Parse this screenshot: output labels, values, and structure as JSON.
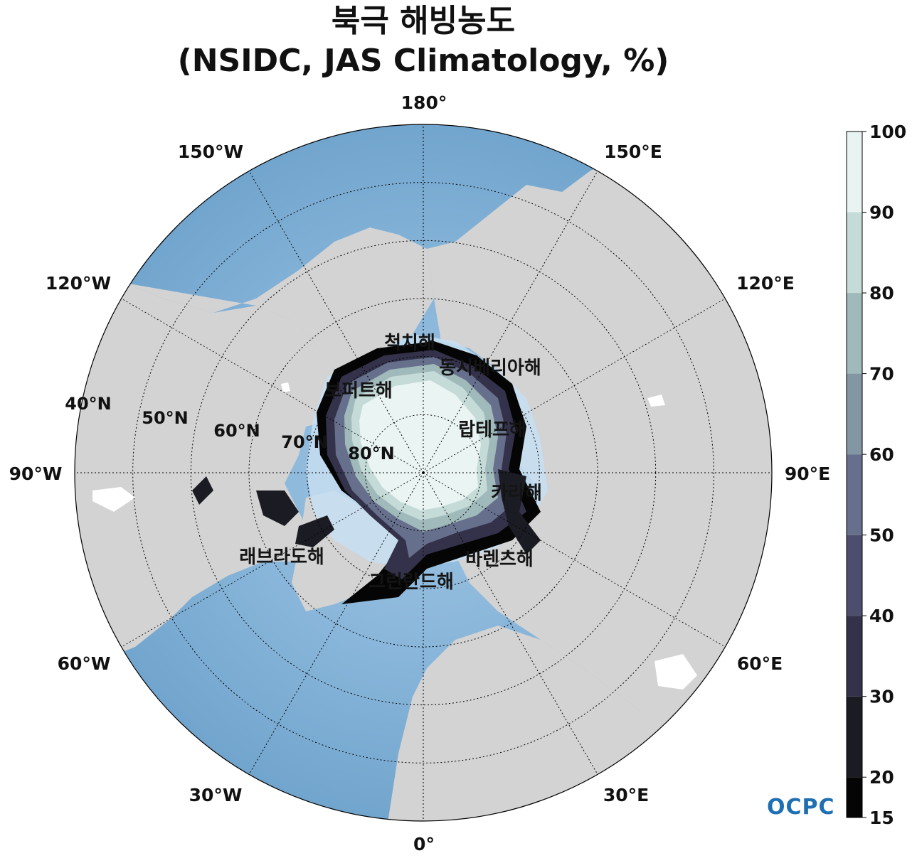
{
  "title": {
    "line1": "북극 해빙농도",
    "line2": "(NSIDC, JAS Climatology, %)"
  },
  "longitude_labels": [
    {
      "lon": 180,
      "text": "180°"
    },
    {
      "lon": 150,
      "text": "150°E"
    },
    {
      "lon": 120,
      "text": "120°E"
    },
    {
      "lon": 90,
      "text": "90°E"
    },
    {
      "lon": 60,
      "text": "60°E"
    },
    {
      "lon": 30,
      "text": "30°E"
    },
    {
      "lon": 0,
      "text": "0°"
    },
    {
      "lon": -30,
      "text": "30°W"
    },
    {
      "lon": -60,
      "text": "60°W"
    },
    {
      "lon": -90,
      "text": "90°W"
    },
    {
      "lon": -120,
      "text": "120°W"
    },
    {
      "lon": -150,
      "text": "150°W"
    }
  ],
  "latitude_labels": [
    {
      "lat": 40,
      "text": "40°N"
    },
    {
      "lat": 50,
      "text": "50°N"
    },
    {
      "lat": 60,
      "text": "60°N"
    },
    {
      "lat": 70,
      "text": "70°N"
    },
    {
      "lat": 80,
      "text": "80°N"
    }
  ],
  "seas": [
    {
      "name": "척치해"
    },
    {
      "name": "동시베리아해"
    },
    {
      "name": "보퍼트해"
    },
    {
      "name": "랍테프해"
    },
    {
      "name": "카라해"
    },
    {
      "name": "래브라도해"
    },
    {
      "name": "그린란드해"
    },
    {
      "name": "바렌츠해"
    }
  ],
  "colorbar": {
    "min": 15,
    "max": 100,
    "ticks": [
      "15",
      "20",
      "30",
      "40",
      "50",
      "60",
      "70",
      "80",
      "90",
      "100"
    ],
    "tick_values": [
      15,
      20,
      30,
      40,
      50,
      60,
      70,
      80,
      90,
      100
    ],
    "colors": [
      "#050505",
      "#1b1b23",
      "#33324a",
      "#4d4e6d",
      "#66708c",
      "#8296a3",
      "#a0b9ba",
      "#c5dbd8",
      "#e9f3f2"
    ]
  },
  "map_colors": {
    "land": "#d3d3d3",
    "ocean_deep": "#76a8cf",
    "ocean_shelf": "#c6def1",
    "ice_core": "#eaf4f3",
    "border": "#000000"
  },
  "logo": {
    "text": "OCPC",
    "color": "#1f6fb3"
  }
}
